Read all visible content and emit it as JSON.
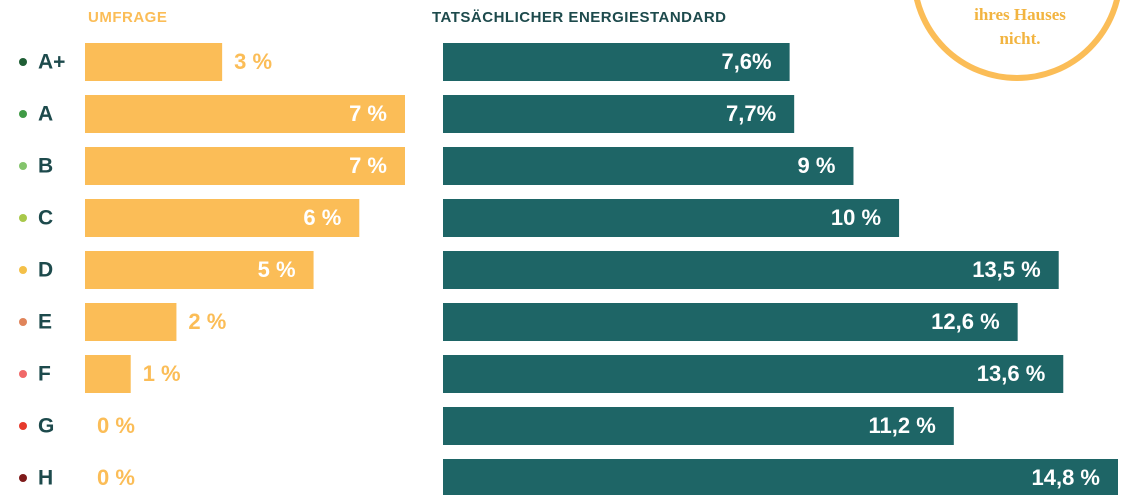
{
  "chart_data": [
    {
      "type": "hbar",
      "title": "UMFRAGE",
      "categories": [
        "A+",
        "A",
        "B",
        "C",
        "D",
        "E",
        "F",
        "G",
        "H"
      ],
      "category_colors": [
        "#1f5e35",
        "#3f9a45",
        "#84c46c",
        "#a8c84a",
        "#f4c048",
        "#e0845a",
        "#f06868",
        "#e63a2c",
        "#7e1a1a"
      ],
      "values": [
        3,
        7,
        7,
        6,
        5,
        2,
        1,
        0,
        0
      ],
      "value_labels": [
        "3 %",
        "7 %",
        "7 %",
        "6 %",
        "5 %",
        "2 %",
        "1 %",
        "0 %",
        "0 %"
      ],
      "color": "#fbbd57",
      "xlim": [
        0,
        7
      ]
    },
    {
      "type": "hbar",
      "title": "TATSÄCHLICHER ENERGIESTANDARD",
      "values": [
        7.6,
        7.7,
        9,
        10,
        13.5,
        12.6,
        13.6,
        11.2,
        14.8
      ],
      "value_labels": [
        "7,6%",
        "7,7%",
        "9 %",
        "10 %",
        "13,5 %",
        "12,6 %",
        "13,6 %",
        "11,2 %",
        "14,8 %"
      ],
      "color": "#1e6566",
      "xlim": [
        0,
        14.8
      ]
    }
  ],
  "annotation": [
    "ihres Hauses",
    "nicht."
  ]
}
